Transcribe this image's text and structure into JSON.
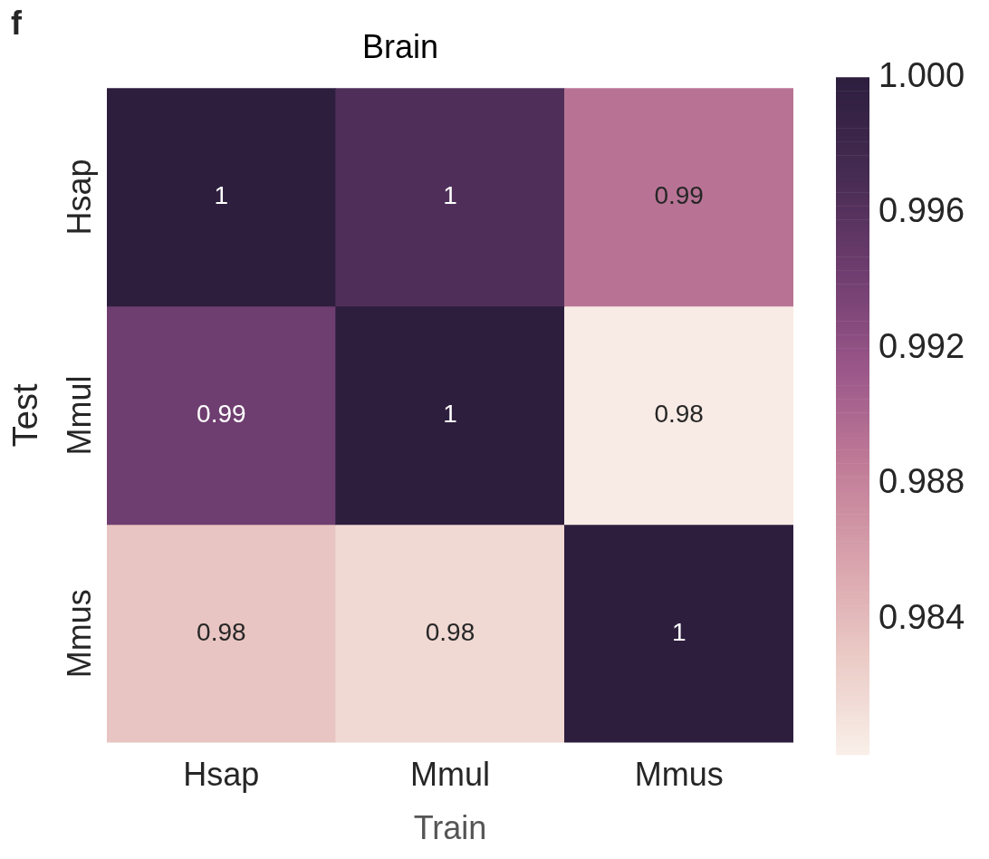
{
  "chart_data": {
    "type": "heatmap",
    "title": "Brain",
    "xlabel": "Train",
    "ylabel": "Test",
    "categories": [
      "Hsap",
      "Mmul",
      "Mmus"
    ],
    "y_categories": [
      "Hsap",
      "Mmul",
      "Mmus"
    ],
    "cells": [
      [
        1.0,
        0.9965,
        0.9892
      ],
      [
        0.9942,
        1.0,
        0.9803
      ],
      [
        0.9833,
        0.9818,
        1.0
      ]
    ],
    "cell_labels": [
      [
        "1",
        "1",
        "0.99"
      ],
      [
        "0.99",
        "1",
        "0.98"
      ],
      [
        "0.98",
        "0.98",
        "1"
      ]
    ],
    "clim": [
      0.98,
      1.0
    ],
    "cticks": [
      0.984,
      0.988,
      0.992,
      0.996,
      {
        "value": 1.0,
        "label": "1.000"
      }
    ],
    "annotations": [
      "f"
    ]
  }
}
